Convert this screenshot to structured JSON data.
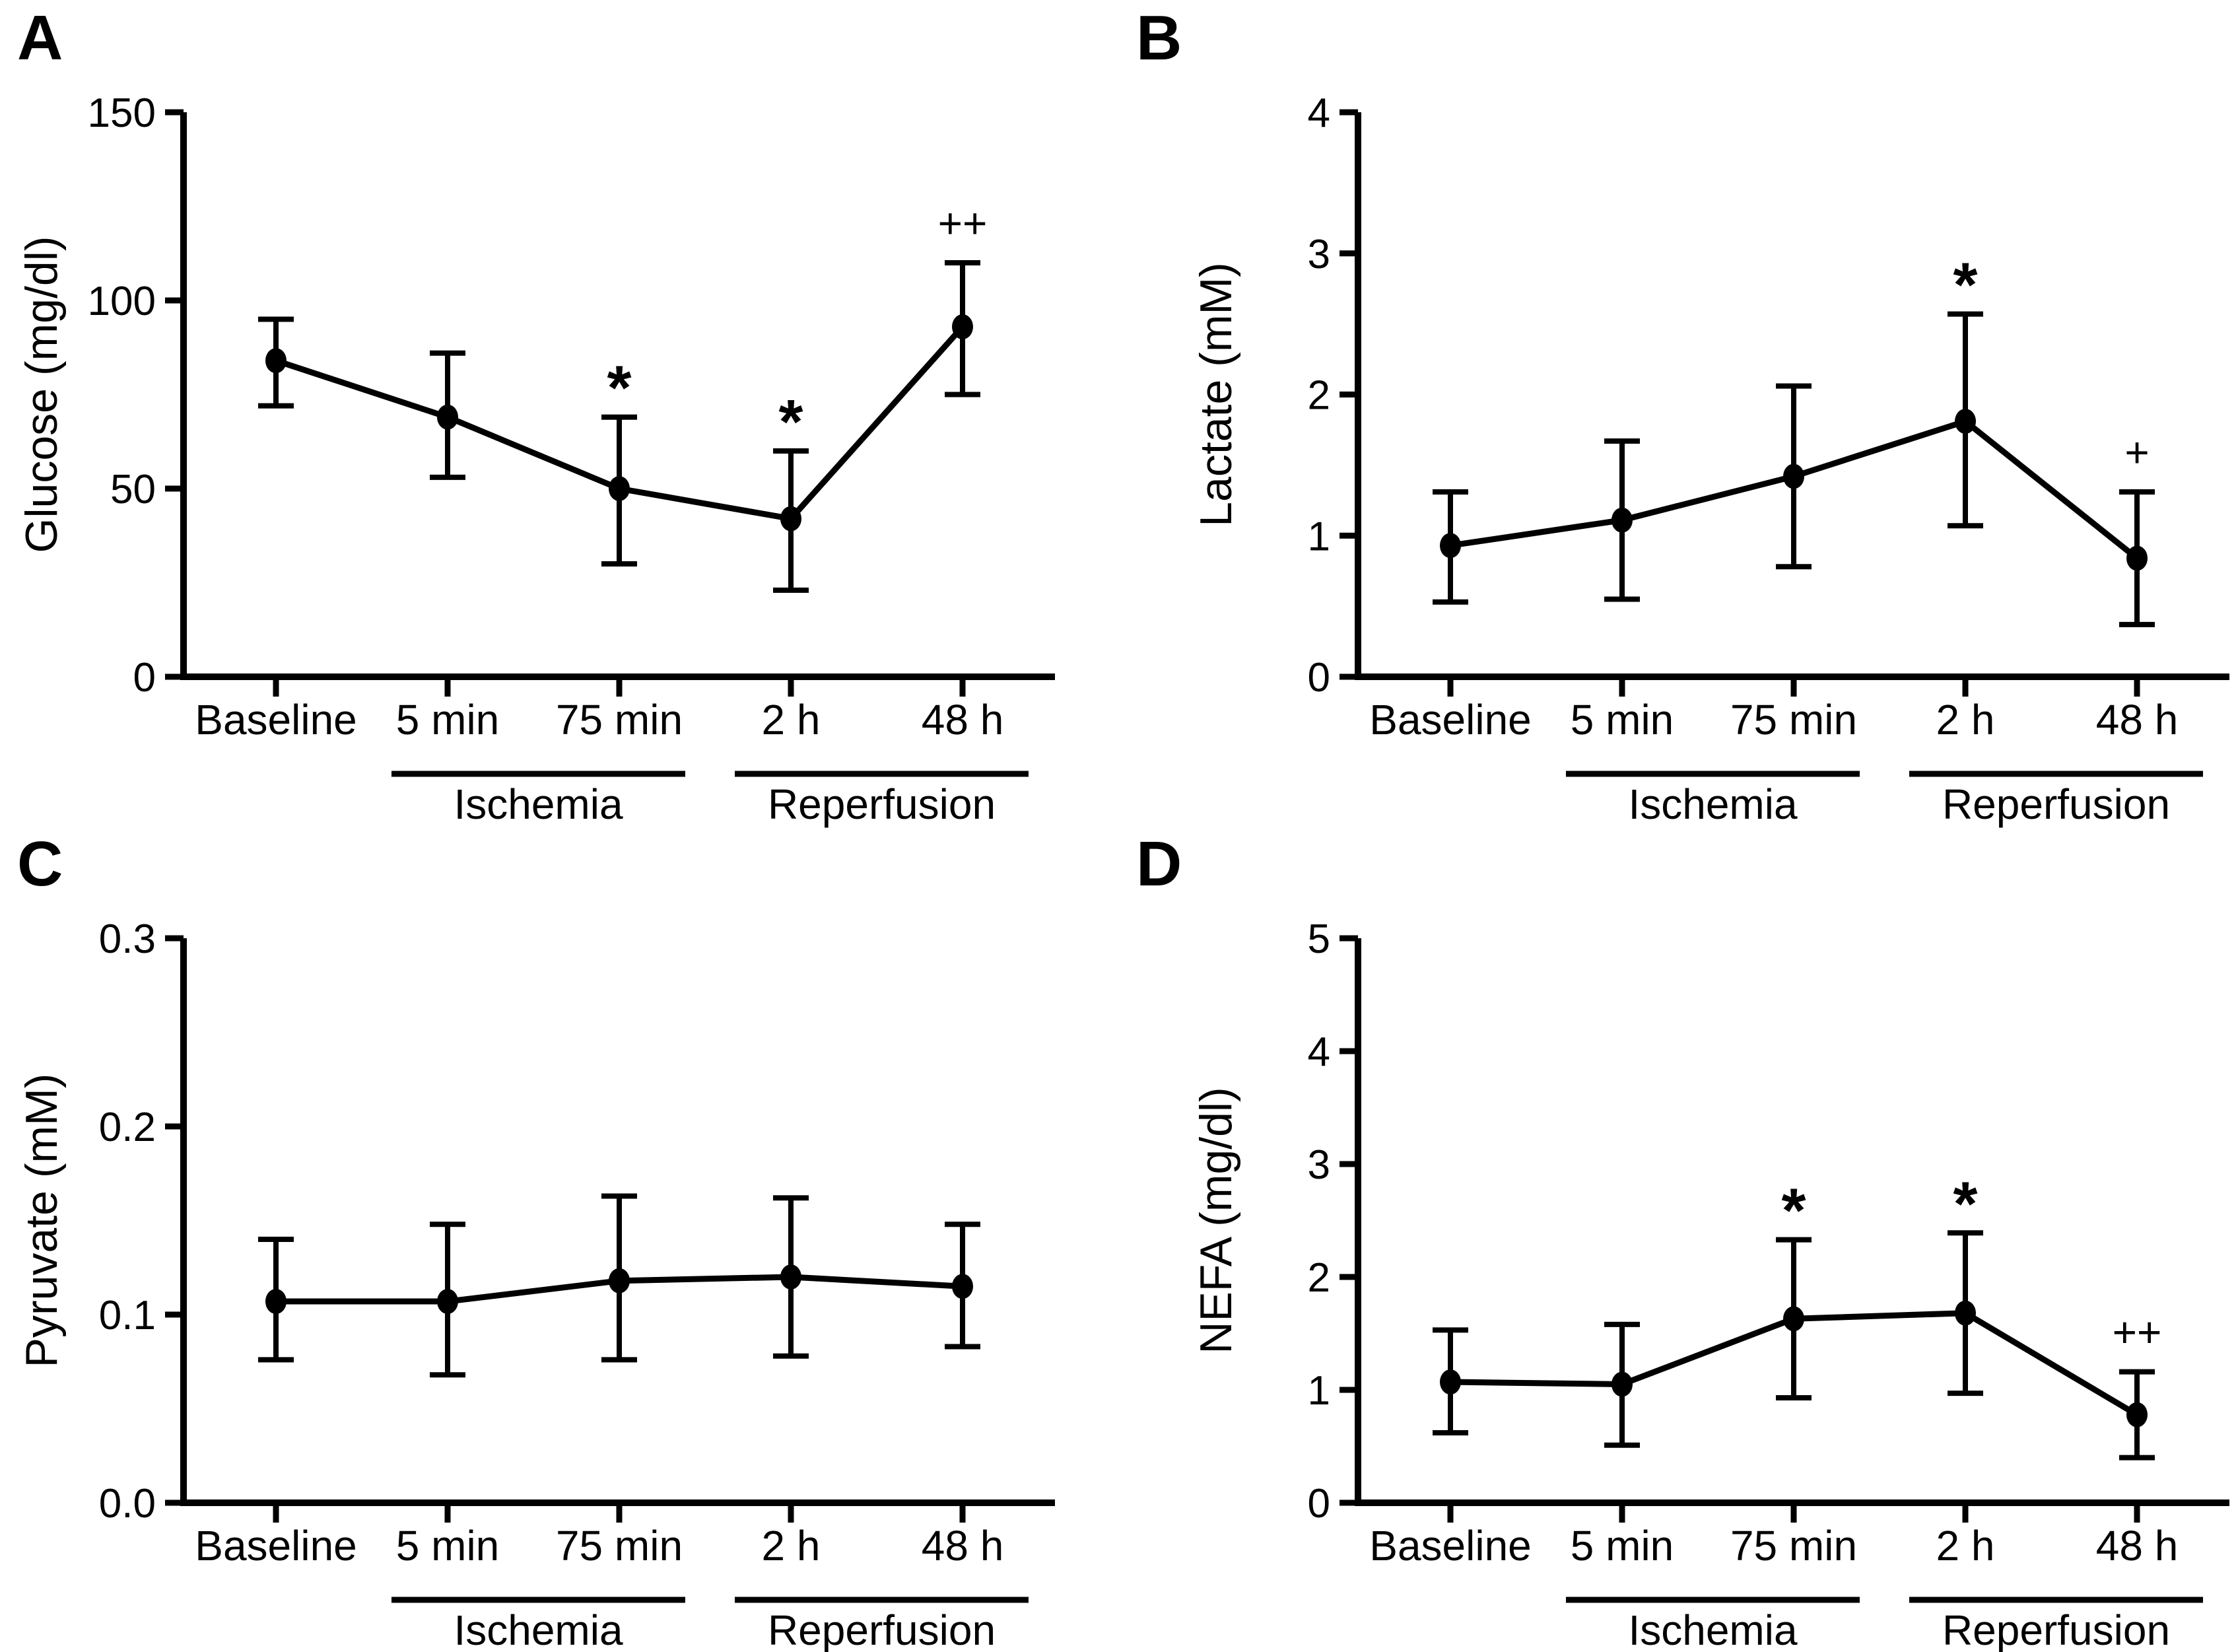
{
  "colors": {
    "ink": "#000000",
    "background": "#ffffff"
  },
  "chart_data": [
    {
      "panel": "A",
      "type": "line",
      "title": "",
      "ylabel": "Glucose (mg/dl)",
      "xlabel": "",
      "categories": [
        "Baseline",
        "5 min",
        "75 min",
        "2 h",
        "48 h"
      ],
      "values": [
        84,
        69,
        50,
        42,
        93
      ],
      "err_low": [
        72,
        53,
        30,
        23,
        75
      ],
      "err_high": [
        95,
        86,
        69,
        60,
        110
      ],
      "sig": [
        "",
        "",
        "*",
        "*",
        "++"
      ],
      "ylim": [
        0,
        150
      ],
      "yticks": [
        0,
        50,
        100,
        150
      ],
      "ytick_labels": [
        "0",
        "50",
        "100",
        "150"
      ],
      "groups": [
        {
          "label": "Ischemia",
          "from": 1,
          "to": 2
        },
        {
          "label": "Reperfusion",
          "from": 3,
          "to": 4
        }
      ],
      "grid": false,
      "legend": null
    },
    {
      "panel": "B",
      "type": "line",
      "title": "",
      "ylabel": "Lactate (mM)",
      "xlabel": "",
      "categories": [
        "Baseline",
        "5 min",
        "75 min",
        "2 h",
        "48 h"
      ],
      "values": [
        0.93,
        1.11,
        1.42,
        1.81,
        0.84
      ],
      "err_low": [
        0.53,
        0.55,
        0.78,
        1.07,
        0.37
      ],
      "err_high": [
        1.31,
        1.67,
        2.06,
        2.57,
        1.31
      ],
      "sig": [
        "",
        "",
        "",
        "*",
        "+"
      ],
      "ylim": [
        0,
        4
      ],
      "yticks": [
        0,
        1,
        2,
        3,
        4
      ],
      "ytick_labels": [
        "0",
        "1",
        "2",
        "3",
        "4"
      ],
      "groups": [
        {
          "label": "Ischemia",
          "from": 1,
          "to": 2
        },
        {
          "label": "Reperfusion",
          "from": 3,
          "to": 4
        }
      ],
      "grid": false,
      "legend": null
    },
    {
      "panel": "C",
      "type": "line",
      "title": "",
      "ylabel": "Pyruvate (mM)",
      "xlabel": "",
      "categories": [
        "Baseline",
        "5 min",
        "75 min",
        "2 h",
        "48 h"
      ],
      "values": [
        0.107,
        0.107,
        0.118,
        0.12,
        0.115
      ],
      "err_low": [
        0.076,
        0.068,
        0.076,
        0.078,
        0.083
      ],
      "err_high": [
        0.14,
        0.148,
        0.163,
        0.162,
        0.148
      ],
      "sig": [
        "",
        "",
        "",
        "",
        ""
      ],
      "ylim": [
        0,
        0.3
      ],
      "yticks": [
        0,
        0.1,
        0.2,
        0.3
      ],
      "ytick_labels": [
        "0.0",
        "0.1",
        "0.2",
        "0.3"
      ],
      "groups": [
        {
          "label": "Ischemia",
          "from": 1,
          "to": 2
        },
        {
          "label": "Reperfusion",
          "from": 3,
          "to": 4
        }
      ],
      "grid": false,
      "legend": null
    },
    {
      "panel": "D",
      "type": "line",
      "title": "",
      "ylabel": "NEFA (mg/dl)",
      "xlabel": "",
      "categories": [
        "Baseline",
        "5 min",
        "75 min",
        "2 h",
        "48 h"
      ],
      "values": [
        1.07,
        1.05,
        1.63,
        1.68,
        0.78
      ],
      "err_low": [
        0.62,
        0.51,
        0.93,
        0.97,
        0.4
      ],
      "err_high": [
        1.53,
        1.58,
        2.33,
        2.39,
        1.16
      ],
      "sig": [
        "",
        "",
        "*",
        "*",
        "++"
      ],
      "ylim": [
        0,
        5
      ],
      "yticks": [
        0,
        1,
        2,
        3,
        4,
        5
      ],
      "ytick_labels": [
        "0",
        "1",
        "2",
        "3",
        "4",
        "5"
      ],
      "groups": [
        {
          "label": "Ischemia",
          "from": 1,
          "to": 2
        },
        {
          "label": "Reperfusion",
          "from": 3,
          "to": 4
        }
      ],
      "grid": false,
      "legend": null
    }
  ]
}
